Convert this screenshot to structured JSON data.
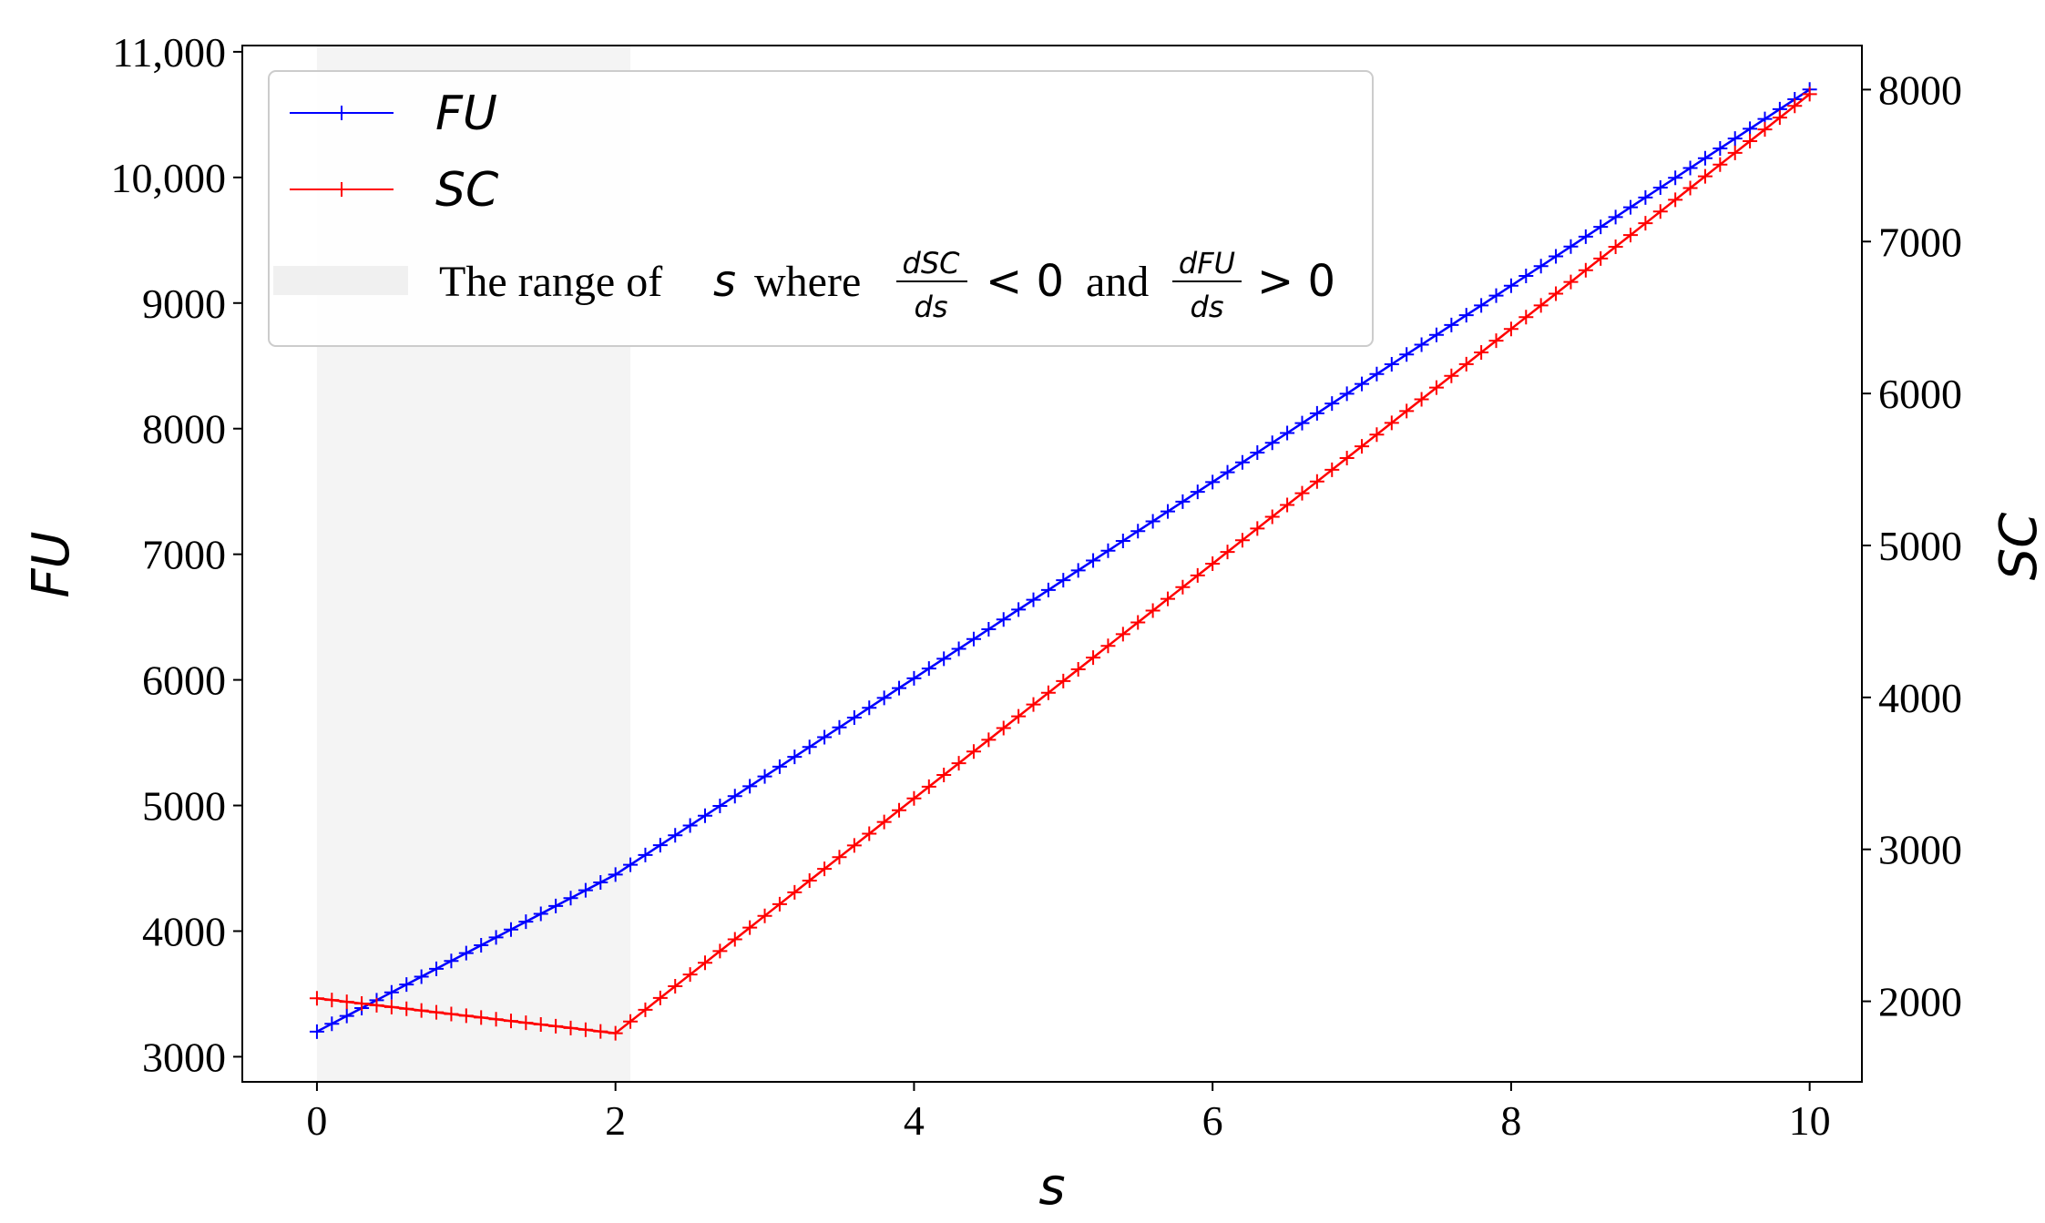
{
  "chart_data": {
    "type": "line",
    "xlabel": "s",
    "ylabel_left": "FU",
    "ylabel_right": "SC",
    "xlim": [
      -0.5,
      10.35
    ],
    "ylim_left": [
      2800,
      11050
    ],
    "ylim_right": [
      1470,
      8290
    ],
    "xticks": [
      0,
      2,
      4,
      6,
      8,
      10
    ],
    "xtick_labels": [
      "0",
      "2",
      "4",
      "6",
      "8",
      "10"
    ],
    "yticks_left": [
      3000,
      4000,
      5000,
      6000,
      7000,
      8000,
      9000,
      10000,
      11000
    ],
    "ytick_labels_left": [
      "3000",
      "4000",
      "5000",
      "6000",
      "7000",
      "8000",
      "9000",
      "10,000",
      "11,000"
    ],
    "yticks_right": [
      2000,
      3000,
      4000,
      5000,
      6000,
      7000,
      8000
    ],
    "ytick_labels_right": [
      "2000",
      "3000",
      "4000",
      "5000",
      "6000",
      "7000",
      "8000"
    ],
    "shaded_range": [
      0,
      2.1
    ],
    "shaded_color": "#f4f4f4",
    "x_step": 0.1,
    "series": [
      {
        "name": "FU",
        "axis": "left",
        "color": "#0000ff",
        "marker": "+",
        "x": [
          0,
          2,
          10
        ],
        "y": [
          3200,
          4450,
          10700
        ]
      },
      {
        "name": "SC",
        "axis": "right",
        "color": "#ff0000",
        "marker": "+",
        "x": [
          0,
          2,
          10
        ],
        "y": [
          2020,
          1790,
          7970
        ]
      }
    ],
    "legend": {
      "position": "upper-left",
      "entries": [
        {
          "label": "FU",
          "color": "#0000ff"
        },
        {
          "label": "SC",
          "color": "#ff0000"
        }
      ],
      "shade_entry": {
        "text1": "The range of",
        "var": "s",
        "text2": "where",
        "frac1_num": "dSC",
        "frac1_den": "ds",
        "rel1": "< 0",
        "text3": "and",
        "frac2_num": "dFU",
        "frac2_den": "ds",
        "rel2": "> 0"
      }
    }
  }
}
